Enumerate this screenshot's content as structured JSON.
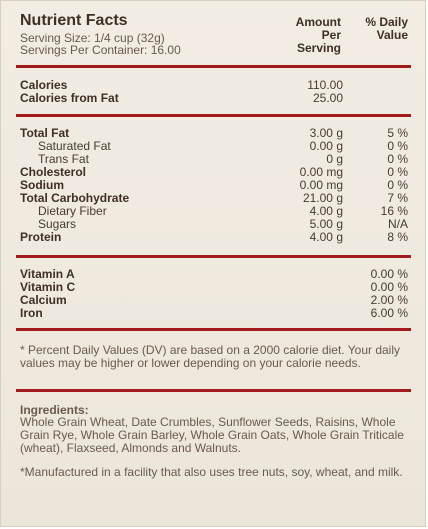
{
  "label": {
    "title": "Nutrient Facts",
    "serving_size": "Serving Size: 1/4 cup (32g)",
    "servings_per_container": "Servings Per Container: 16.00",
    "col_amount": [
      "Amount",
      "Per",
      "Serving"
    ],
    "col_dv": [
      "% Daily",
      "Value"
    ]
  },
  "calories": [
    {
      "label": "Calories",
      "amount": "110.00"
    },
    {
      "label": "Calories from Fat",
      "amount": "25.00"
    }
  ],
  "nutrients": [
    {
      "label": "Total Fat",
      "amount": "3.00 g",
      "dv": "5 %",
      "indent": false
    },
    {
      "label": "Saturated Fat",
      "amount": "0.00 g",
      "dv": "0 %",
      "indent": true
    },
    {
      "label": "Trans Fat",
      "amount": "0 g",
      "dv": "0 %",
      "indent": true
    },
    {
      "label": "Cholesterol",
      "amount": "0.00 mg",
      "dv": "0 %",
      "indent": false
    },
    {
      "label": "Sodium",
      "amount": "0.00 mg",
      "dv": "0 %",
      "indent": false
    },
    {
      "label": "Total Carbohydrate",
      "amount": "21.00 g",
      "dv": "7 %",
      "indent": false
    },
    {
      "label": "Dietary Fiber",
      "amount": "4.00 g",
      "dv": "16 %",
      "indent": true
    },
    {
      "label": "Sugars",
      "amount": "5.00 g",
      "dv": "N/A",
      "indent": true
    },
    {
      "label": "Protein",
      "amount": "4.00 g",
      "dv": "8 %",
      "indent": false
    }
  ],
  "vitamins": [
    {
      "label": "Vitamin A",
      "dv": "0.00 %"
    },
    {
      "label": "Vitamin C",
      "dv": "0.00 %"
    },
    {
      "label": "Calcium",
      "dv": "2.00 %"
    },
    {
      "label": "Iron",
      "dv": "6.00 %"
    }
  ],
  "footnote": "* Percent Daily Values (DV) are based on a 2000 calorie diet. Your daily values may be higher or lower depending on your calorie needs.",
  "ingredients": {
    "title": "Ingredients:",
    "text": "Whole Grain Wheat, Date Crumbles, Sunflower Seeds, Raisins, Whole Grain Rye, Whole Grain Barley, Whole Grain Oats, Whole Grain Triticale (wheat), Flaxseed, Almonds and Walnuts.",
    "allergen": "*Manufactured in a facility that also uses tree nuts, soy, wheat, and milk."
  },
  "colors": {
    "rule": "#a11b1b",
    "text": "#4a3a2e",
    "background": "#efe9de"
  }
}
